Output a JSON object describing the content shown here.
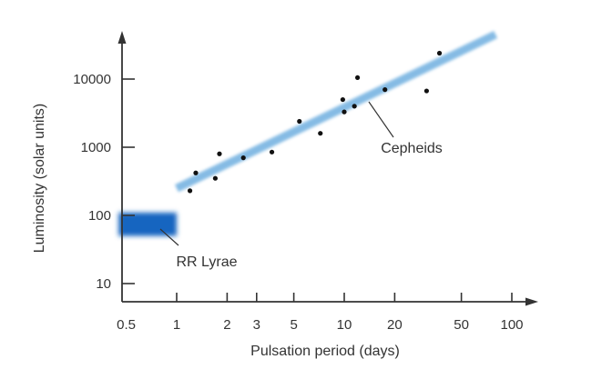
{
  "chart_data": {
    "type": "scatter",
    "title": "",
    "xlabel": "Pulsation period (days)",
    "ylabel": "Luminosity (solar units)",
    "x_scale": "log",
    "y_scale": "log",
    "xlim": [
      0.4,
      120
    ],
    "ylim": [
      6,
      60000
    ],
    "grid": false,
    "x_ticks": [
      {
        "value": 0.5,
        "label": "0.5"
      },
      {
        "value": 1,
        "label": "1"
      },
      {
        "value": 2,
        "label": "2"
      },
      {
        "value": 3,
        "label": "3"
      },
      {
        "value": 5,
        "label": "5"
      },
      {
        "value": 10,
        "label": "10"
      },
      {
        "value": 20,
        "label": "20"
      },
      {
        "value": 50,
        "label": "50"
      },
      {
        "value": 100,
        "label": "100"
      }
    ],
    "y_ticks": [
      {
        "value": 10,
        "label": "10"
      },
      {
        "value": 100,
        "label": "100"
      },
      {
        "value": 1000,
        "label": "1000"
      },
      {
        "value": 10000,
        "label": "10000"
      }
    ],
    "series": [
      {
        "name": "Cepheids",
        "kind": "scatter-with-trend",
        "color": "#7fb8e3",
        "points": [
          {
            "x": 1.2,
            "y": 230
          },
          {
            "x": 1.3,
            "y": 420
          },
          {
            "x": 1.7,
            "y": 350
          },
          {
            "x": 1.8,
            "y": 800
          },
          {
            "x": 2.5,
            "y": 700
          },
          {
            "x": 3.7,
            "y": 850
          },
          {
            "x": 5.4,
            "y": 2400
          },
          {
            "x": 7.2,
            "y": 1600
          },
          {
            "x": 9.8,
            "y": 5000
          },
          {
            "x": 10.0,
            "y": 3300
          },
          {
            "x": 11.5,
            "y": 4000
          },
          {
            "x": 12.0,
            "y": 10500
          },
          {
            "x": 17.5,
            "y": 7000
          },
          {
            "x": 31.0,
            "y": 6700
          },
          {
            "x": 37.0,
            "y": 24000
          }
        ],
        "trend": [
          {
            "x": 1.0,
            "y": 250
          },
          {
            "x": 80,
            "y": 45000
          }
        ]
      },
      {
        "name": "RR Lyrae",
        "kind": "region",
        "color": "#1565c0",
        "x_range": [
          0.45,
          1.0
        ],
        "y_range": [
          50,
          110
        ]
      }
    ],
    "annotations": [
      {
        "text": "Cepheids",
        "target": "Cepheids"
      },
      {
        "text": "RR Lyrae",
        "target": "RR Lyrae"
      }
    ]
  }
}
